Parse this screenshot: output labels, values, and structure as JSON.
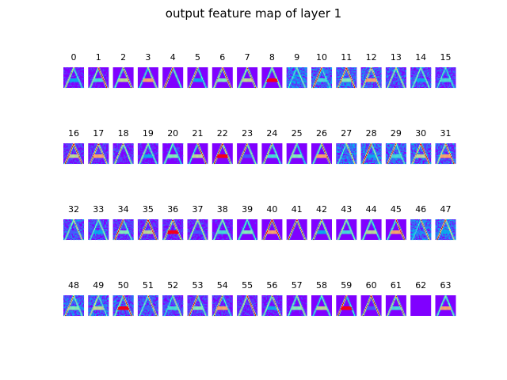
{
  "figure": {
    "title": "output feature map of layer 1"
  },
  "chart_data": {
    "type": "heatmap",
    "title": "output feature map of layer 1",
    "layout": {
      "rows": 4,
      "cols": 16
    },
    "colormap": "rainbow",
    "colormap_colors": [
      "#8000ff",
      "#4062fa",
      "#00b5eb",
      "#40ecd4",
      "#80ffb4",
      "#c0eb8d",
      "#ffb360",
      "#ff0000"
    ],
    "subplot_labels": [
      "0",
      "1",
      "2",
      "3",
      "4",
      "5",
      "6",
      "7",
      "8",
      "9",
      "10",
      "11",
      "12",
      "13",
      "14",
      "15",
      "16",
      "17",
      "18",
      "19",
      "20",
      "21",
      "22",
      "23",
      "24",
      "25",
      "26",
      "27",
      "28",
      "29",
      "30",
      "31",
      "32",
      "33",
      "34",
      "35",
      "36",
      "37",
      "38",
      "39",
      "40",
      "41",
      "42",
      "43",
      "44",
      "45",
      "46",
      "47",
      "48",
      "49",
      "50",
      "51",
      "52",
      "53",
      "54",
      "55",
      "56",
      "57",
      "58",
      "59",
      "60",
      "61",
      "62",
      "63"
    ],
    "uniform_maps": [
      "62"
    ]
  }
}
